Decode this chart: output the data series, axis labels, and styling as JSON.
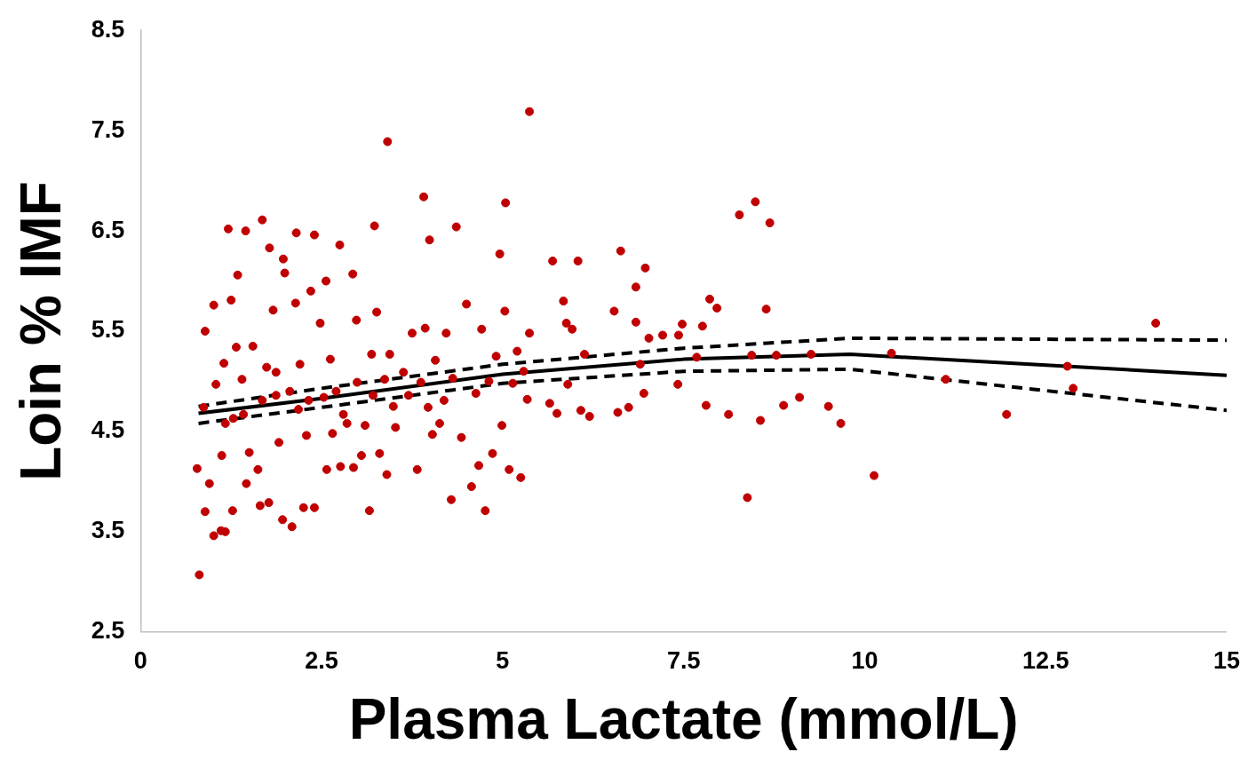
{
  "chart_data": {
    "type": "scatter",
    "xlabel": "Plasma Lactate (mmol/L)",
    "ylabel": "Loin % IMF",
    "xlim": [
      0,
      15
    ],
    "xticks": [
      0,
      2.5,
      5,
      7.5,
      10,
      12.5,
      15
    ],
    "ylim": [
      2.5,
      8.5
    ],
    "yticks": [
      2.5,
      3.5,
      4.5,
      5.5,
      6.5,
      7.5,
      8.5
    ],
    "grid": false,
    "legend": false,
    "series": [
      {
        "type": "scatter",
        "color": "#c00000",
        "marker": "circle",
        "x": [
          0.78,
          0.81,
          0.89,
          0.87,
          0.89,
          0.95,
          1.01,
          1.04,
          1.01,
          1.11,
          1.17,
          1.12,
          1.15,
          1.21,
          1.25,
          1.27,
          1.28,
          1.32,
          1.34,
          1.4,
          1.45,
          1.46,
          1.5,
          1.55,
          1.62,
          1.65,
          1.68,
          1.74,
          1.78,
          1.77,
          1.83,
          1.87,
          1.91,
          1.96,
          1.97,
          1.99,
          2.09,
          2.14,
          2.15,
          2.18,
          2.2,
          2.25,
          2.29,
          2.35,
          2.4,
          2.4,
          2.48,
          2.53,
          2.56,
          2.57,
          2.62,
          2.65,
          2.75,
          2.76,
          2.8,
          2.85,
          2.93,
          2.94,
          2.98,
          2.99,
          3.05,
          3.1,
          3.16,
          3.19,
          3.23,
          3.26,
          3.3,
          3.37,
          3.4,
          3.41,
          3.44,
          3.49,
          3.52,
          3.63,
          3.7,
          3.75,
          3.82,
          3.87,
          3.91,
          3.93,
          3.97,
          3.99,
          4.03,
          4.07,
          4.13,
          4.19,
          4.22,
          4.29,
          4.31,
          4.36,
          4.43,
          4.5,
          4.57,
          4.63,
          4.67,
          4.71,
          4.76,
          4.81,
          4.86,
          4.91,
          4.96,
          4.99,
          5.03,
          5.04,
          5.09,
          5.14,
          5.2,
          5.25,
          5.29,
          5.34,
          5.37,
          5.37,
          5.65,
          5.69,
          5.75,
          5.84,
          5.88,
          5.9,
          5.96,
          6.04,
          6.08,
          6.13,
          6.2,
          6.54,
          6.59,
          6.63,
          6.74,
          6.84,
          6.84,
          6.9,
          6.95,
          6.97,
          7.02,
          7.21,
          7.42,
          7.43,
          7.48,
          7.68,
          7.76,
          7.81,
          7.86,
          7.96,
          8.12,
          8.27,
          8.38,
          8.44,
          8.49,
          8.56,
          8.64,
          8.69,
          8.78,
          8.88,
          9.1,
          9.26,
          9.5,
          9.67,
          10.13,
          10.37,
          11.12,
          11.96,
          12.8,
          12.88,
          14.02,
          1.87,
          2.06,
          2.32,
          1.68,
          1.17,
          1.42,
          2.7,
          3.21
        ],
        "values": [
          4.13,
          3.07,
          3.7,
          4.74,
          5.5,
          3.98,
          3.46,
          4.97,
          5.76,
          3.51,
          3.5,
          4.26,
          5.18,
          6.52,
          5.81,
          3.71,
          4.63,
          5.34,
          6.06,
          5.02,
          6.5,
          3.98,
          4.29,
          5.35,
          4.12,
          3.76,
          6.61,
          5.14,
          6.33,
          3.79,
          5.71,
          5.09,
          4.39,
          3.62,
          6.22,
          6.08,
          3.55,
          5.78,
          6.48,
          4.72,
          5.17,
          3.74,
          4.46,
          5.9,
          6.46,
          3.74,
          5.58,
          4.84,
          6.0,
          4.12,
          5.22,
          4.48,
          6.36,
          4.15,
          4.67,
          4.58,
          6.07,
          4.14,
          5.61,
          4.99,
          4.26,
          4.56,
          3.71,
          5.27,
          6.55,
          5.69,
          4.28,
          5.02,
          4.07,
          7.39,
          5.27,
          4.75,
          4.54,
          5.09,
          4.86,
          5.48,
          4.12,
          4.99,
          6.84,
          5.53,
          4.74,
          6.41,
          4.47,
          5.21,
          4.58,
          4.81,
          5.48,
          3.82,
          5.03,
          6.54,
          4.44,
          5.77,
          3.95,
          4.88,
          4.16,
          5.52,
          3.71,
          5.0,
          4.28,
          5.25,
          6.27,
          4.56,
          5.7,
          6.78,
          4.12,
          4.98,
          5.3,
          4.04,
          5.1,
          4.82,
          5.48,
          7.69,
          4.78,
          6.2,
          4.68,
          5.8,
          5.58,
          4.97,
          5.52,
          6.2,
          4.71,
          5.27,
          4.65,
          5.7,
          4.69,
          6.3,
          4.74,
          5.94,
          5.59,
          5.17,
          4.88,
          6.13,
          5.43,
          5.46,
          4.97,
          5.46,
          5.57,
          5.24,
          5.55,
          4.76,
          5.82,
          5.73,
          4.67,
          6.66,
          3.84,
          5.26,
          6.79,
          4.61,
          5.72,
          6.58,
          5.26,
          4.76,
          4.84,
          5.27,
          4.75,
          4.58,
          4.06,
          5.28,
          5.02,
          4.67,
          5.15,
          4.93,
          5.58,
          4.86,
          4.9,
          4.81,
          4.81,
          4.58,
          4.67,
          4.9,
          4.86
        ]
      },
      {
        "type": "line",
        "color": "#000000",
        "marker": "none",
        "line_style": "solid",
        "x": [
          0.8,
          2.5,
          5,
          7.5,
          9.8,
          15
        ],
        "values": [
          4.68,
          4.83,
          5.07,
          5.22,
          5.27,
          5.06
        ]
      },
      {
        "type": "line",
        "color": "#000000",
        "marker": "none",
        "line_style": "dashed",
        "x": [
          0.8,
          2.5,
          5,
          7.5,
          9.8,
          15
        ],
        "values": [
          4.75,
          4.93,
          5.17,
          5.33,
          5.43,
          5.41
        ]
      },
      {
        "type": "line",
        "color": "#000000",
        "marker": "none",
        "line_style": "dashed",
        "x": [
          0.8,
          2.5,
          5,
          7.5,
          9.8,
          15
        ],
        "values": [
          4.58,
          4.74,
          4.98,
          5.1,
          5.12,
          4.71
        ]
      }
    ]
  }
}
